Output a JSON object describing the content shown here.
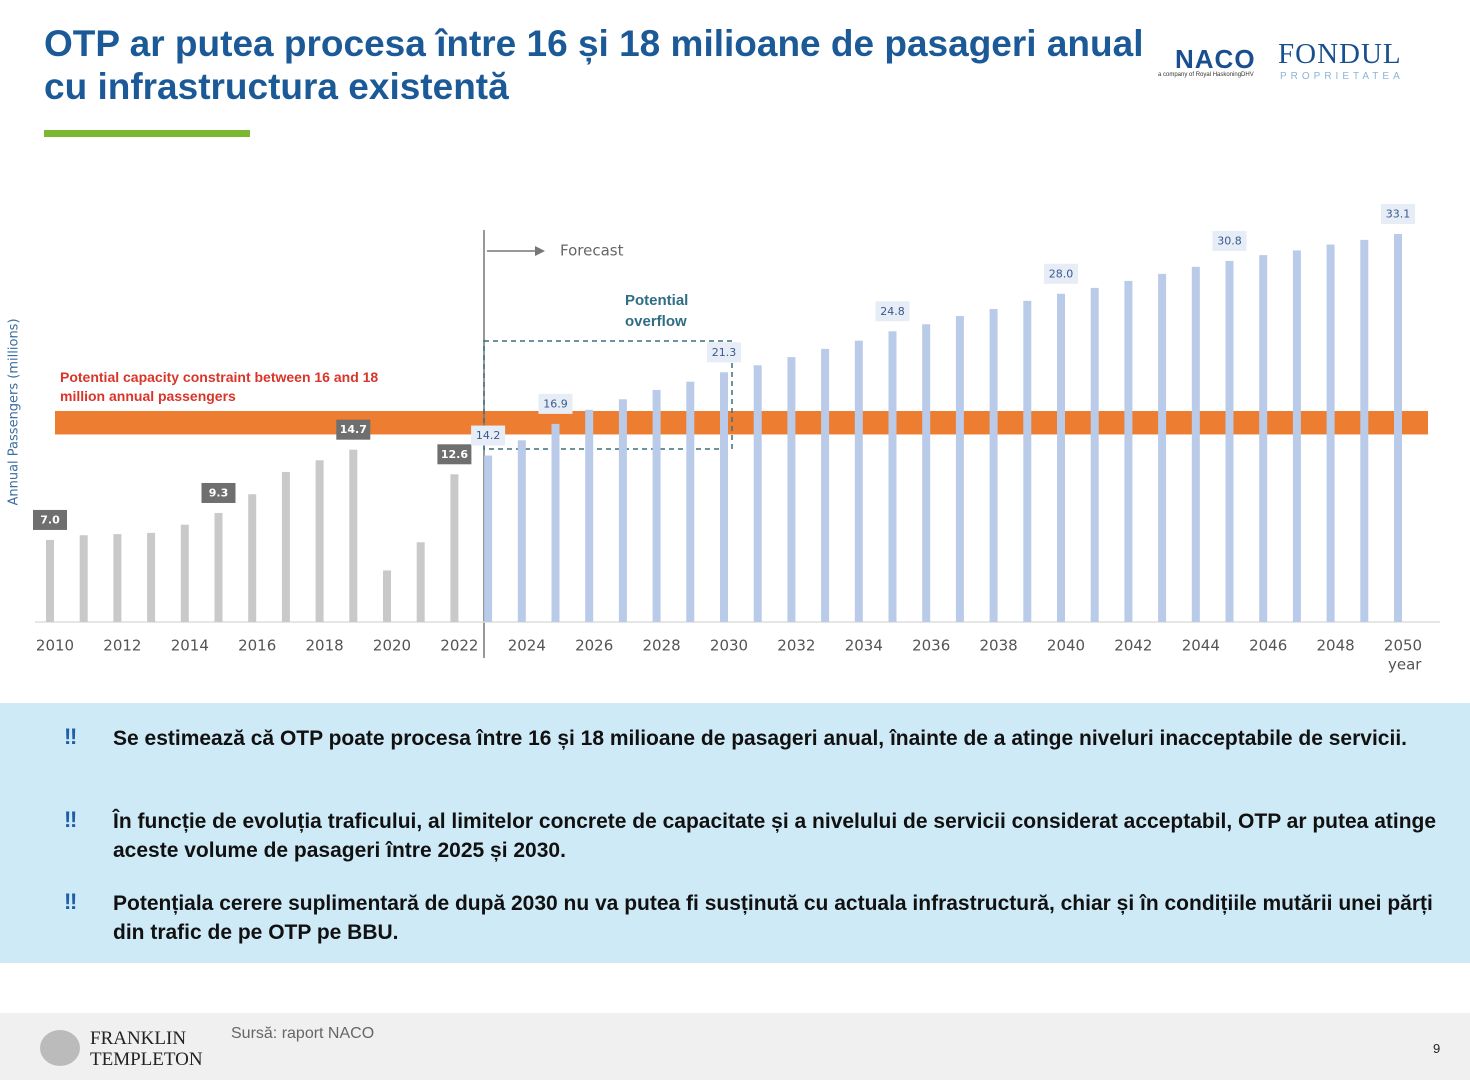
{
  "header": {
    "title": "OTP ar putea procesa între 16 și 18 milioane de pasageri anual cu infrastructura existentă",
    "logos": [
      "NACO",
      "a company of Royal HaskoningDHV",
      "FONDUL",
      "PROPRIETATEA"
    ]
  },
  "chart_data": {
    "type": "bar",
    "y_label": "Annual Passengers (millions)",
    "x_label": "year",
    "annotations": {
      "forecast": "Forecast",
      "overflow": "Potential overflow",
      "constraint": "Potential capacity constraint between 16 and 18 million annual passengers"
    },
    "constraint_range": [
      16,
      18
    ],
    "constraint_color": "#ed7d31",
    "categories": [
      "2010",
      null,
      "2012",
      null,
      "2014",
      null,
      "2016",
      null,
      "2018",
      null,
      "2020",
      null,
      "2022",
      null,
      "2024",
      null,
      "2026",
      null,
      "2028",
      null,
      "2030",
      null,
      "2032",
      null,
      "2034",
      null,
      "2036",
      null,
      "2038",
      null,
      "2040",
      null,
      "2042",
      null,
      "2044",
      null,
      "2046",
      null,
      "2048",
      null,
      "2050"
    ],
    "values": [
      7.0,
      7.4,
      7.5,
      7.6,
      8.3,
      9.3,
      10.9,
      12.8,
      13.8,
      14.7,
      4.4,
      6.8,
      12.6,
      14.2,
      15.5,
      16.9,
      18.1,
      19.0,
      19.8,
      20.5,
      21.3,
      21.9,
      22.6,
      23.3,
      24.0,
      24.8,
      25.4,
      26.1,
      26.7,
      27.4,
      28.0,
      28.5,
      29.1,
      29.7,
      30.3,
      30.8,
      31.3,
      31.7,
      32.2,
      32.6,
      33.1
    ],
    "value_labels": [
      "7.0",
      null,
      null,
      null,
      null,
      "9.3",
      null,
      null,
      null,
      "14.7",
      null,
      null,
      "12.6",
      "14.2",
      null,
      "16.9",
      null,
      null,
      null,
      null,
      "21.3",
      null,
      null,
      null,
      null,
      "24.8",
      null,
      null,
      null,
      null,
      "28.0",
      null,
      null,
      null,
      null,
      "30.8",
      null,
      null,
      null,
      null,
      "33.1"
    ],
    "colors": [
      "#c9c9c9",
      "#c9c9c9",
      "#c9c9c9",
      "#c9c9c9",
      "#c9c9c9",
      "#c9c9c9",
      "#c9c9c9",
      "#c9c9c9",
      "#c9c9c9",
      "#c9c9c9",
      "#c9c9c9",
      "#c9c9c9",
      "#c9c9c9",
      "#b9cbe8",
      "#b9cbe8",
      "#b9cbe8",
      "#b9cbe8",
      "#b9cbe8",
      "#b9cbe8",
      "#b9cbe8",
      "#b9cbe8",
      "#b9cbe8",
      "#b9cbe8",
      "#b9cbe8",
      "#b9cbe8",
      "#b9cbe8",
      "#b9cbe8",
      "#b9cbe8",
      "#b9cbe8",
      "#b9cbe8",
      "#b9cbe8",
      "#b9cbe8",
      "#b9cbe8",
      "#b9cbe8",
      "#b9cbe8",
      "#b9cbe8",
      "#b9cbe8",
      "#b9cbe8",
      "#b9cbe8",
      "#b9cbe8",
      "#b9cbe8"
    ],
    "ylim": [
      0,
      36
    ]
  },
  "bullet_symbol": "‼",
  "bullets": [
    "Se estimează că OTP poate procesa între 16 și 18 milioane de pasageri anual, înainte de a atinge niveluri inacceptabile de servicii.",
    "În funcție de evoluția traficului, al limitelor concrete de capacitate și a nivelului de servicii considerat acceptabil, OTP ar putea atinge aceste volume de pasageri între 2025 și 2030.",
    "Potențiala cerere suplimentară de după 2030 nu va putea fi susținută cu actuala infrastructură, chiar și în condițiile mutării unei părți din trafic de pe OTP pe BBU."
  ],
  "footer": {
    "brand": [
      "FRANKLIN",
      "TEMPLETON"
    ],
    "source": "Sursă: raport NACO",
    "page": "9"
  }
}
